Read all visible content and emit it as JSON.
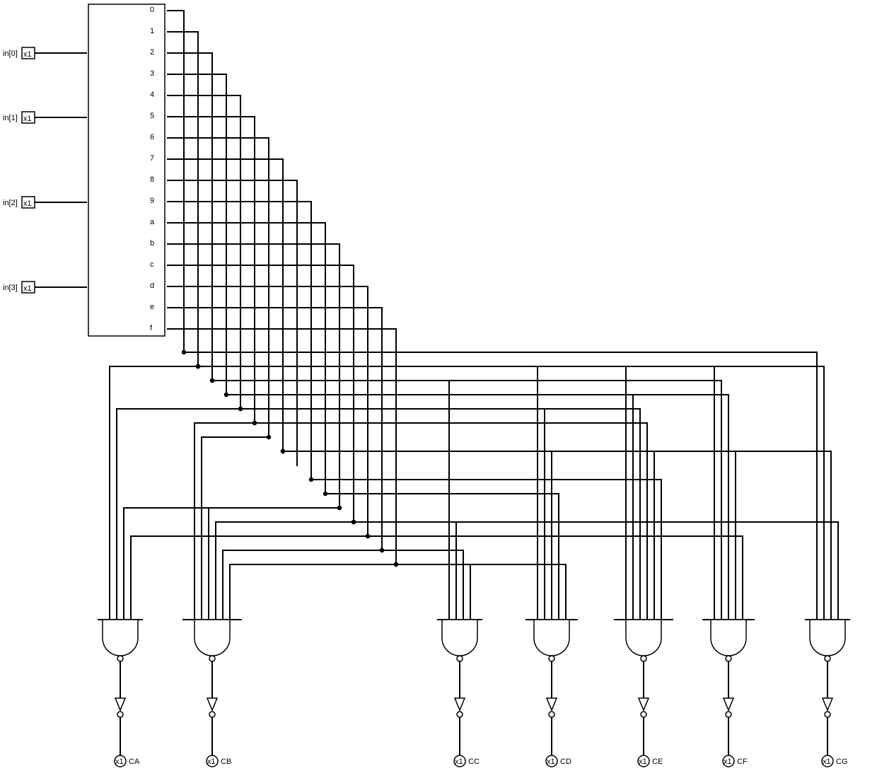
{
  "decoder": {
    "outputs": [
      "0",
      "1",
      "2",
      "3",
      "4",
      "5",
      "6",
      "7",
      "8",
      "9",
      "a",
      "b",
      "c",
      "d",
      "e",
      "f"
    ]
  },
  "inputs": [
    {
      "label": "in[0]",
      "width": "x1"
    },
    {
      "label": "in[1]",
      "width": "x1"
    },
    {
      "label": "in[2]",
      "width": "x1"
    },
    {
      "label": "in[3]",
      "width": "x1"
    }
  ],
  "outputs": [
    {
      "label": "CA",
      "width": "x1",
      "terms": [
        "1",
        "4",
        "b",
        "d"
      ]
    },
    {
      "label": "CB",
      "width": "x1",
      "terms": [
        "5",
        "6",
        "b",
        "c",
        "e",
        "f"
      ]
    },
    {
      "label": "CC",
      "width": "x1",
      "terms": [
        "2",
        "c",
        "e",
        "f"
      ]
    },
    {
      "label": "CD",
      "width": "x1",
      "terms": [
        "1",
        "4",
        "7",
        "a",
        "f"
      ]
    },
    {
      "label": "CE",
      "width": "x1",
      "terms": [
        "1",
        "3",
        "4",
        "5",
        "7",
        "9"
      ]
    },
    {
      "label": "CF",
      "width": "x1",
      "terms": [
        "1",
        "2",
        "3",
        "7",
        "d"
      ]
    },
    {
      "label": "CG",
      "width": "x1",
      "terms": [
        "0",
        "1",
        "7",
        "c"
      ]
    }
  ]
}
